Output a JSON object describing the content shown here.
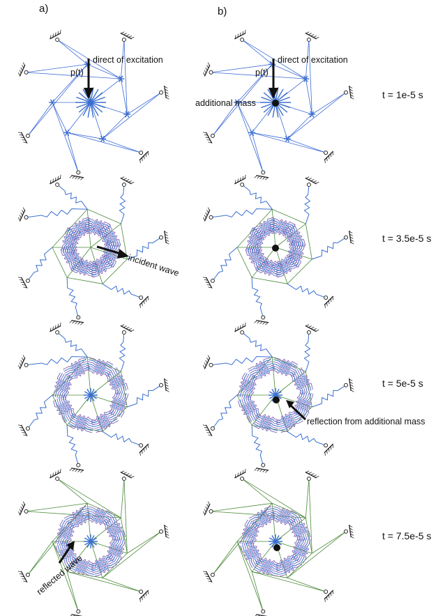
{
  "columns": [
    "a)",
    "b)"
  ],
  "times": [
    "t = 1e-5 s",
    "t = 3.5e-5 s",
    "t = 5e-5 s",
    "t = 7.5e-5 s"
  ],
  "annotations": {
    "force": "p(t)",
    "direction": "direct of excitation",
    "mass": "additional mass",
    "incident": "incident wave",
    "reflection": "reflection from additional mass",
    "reflected": "reflected wave"
  },
  "colors": {
    "spring": "#3a6fd0",
    "spring_hi": "#8a6fb8",
    "link": "#4a8a3a",
    "link_blue": "#3d6bd6",
    "ink": "#111111"
  }
}
